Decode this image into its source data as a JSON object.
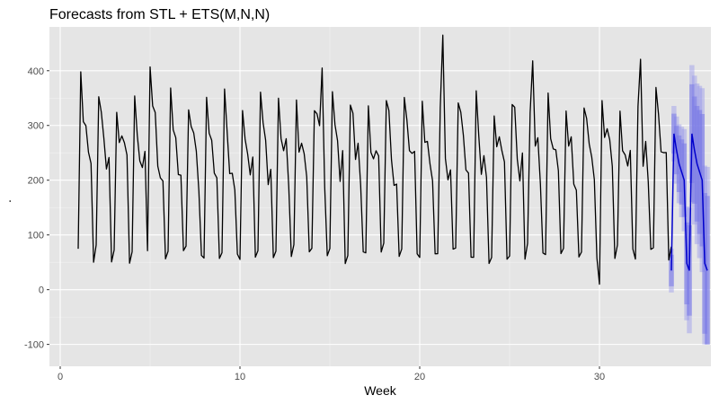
{
  "chart_data": {
    "type": "line",
    "title": "Forecasts from STL +  ETS(M,N,N)",
    "xlabel": "Week",
    "ylabel": ".",
    "xlim": [
      -0.6,
      36.2
    ],
    "ylim": [
      -140,
      480
    ],
    "x_ticks": [
      0,
      10,
      20,
      30
    ],
    "y_ticks": [
      -100,
      0,
      100,
      200,
      300,
      400
    ],
    "x_tick_labels": [
      "0",
      "10",
      "20",
      "30"
    ],
    "y_tick_labels": [
      "-100",
      "0",
      "100",
      "200",
      "300",
      "400"
    ],
    "grid": true,
    "panel_background": "#e5e5e5",
    "observed": {
      "color": "#000000",
      "period_per_week": 7,
      "x_start": 1.0,
      "x_end": 34.0,
      "daily_pattern": [
        70,
        390,
        290,
        250,
        230,
        210,
        60
      ],
      "notable_points": [
        {
          "x": 1.14,
          "y": 398
        },
        {
          "x": 5.0,
          "y": 407
        },
        {
          "x": 14.57,
          "y": 405
        },
        {
          "x": 21.29,
          "y": 465
        },
        {
          "x": 26.29,
          "y": 418
        },
        {
          "x": 32.29,
          "y": 421
        },
        {
          "x": 30.0,
          "y": 10
        }
      ]
    },
    "forecast": {
      "color": "#0000cc",
      "x_start": 34.0,
      "x_end": 36.0,
      "point_pattern": [
        35,
        285,
        255,
        230,
        215,
        200,
        48
      ],
      "interval_upper_max": 420,
      "interval_lower_min": -100
    }
  }
}
